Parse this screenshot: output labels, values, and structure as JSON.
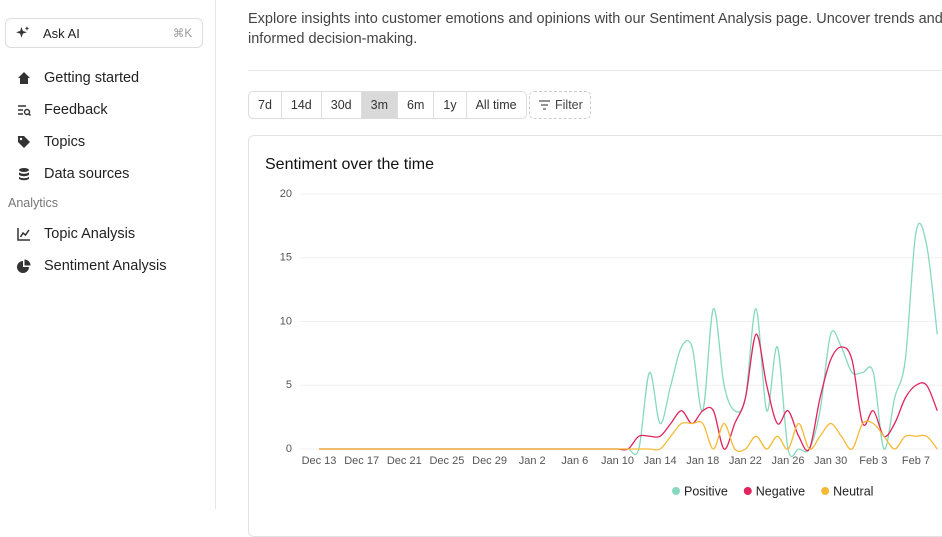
{
  "sidebar": {
    "ask_ai": {
      "label": "Ask AI",
      "shortcut": "⌘K"
    },
    "nav": [
      "Getting started",
      "Feedback",
      "Topics",
      "Data sources"
    ],
    "section": "Analytics",
    "analytics_nav": [
      "Topic Analysis",
      "Sentiment Analysis"
    ]
  },
  "intro": [
    "Explore insights into customer emotions and opinions with our Sentiment Analysis page. Uncover trends and",
    "informed decision-making."
  ],
  "ranges": {
    "options": [
      "7d",
      "14d",
      "30d",
      "3m",
      "6m",
      "1y",
      "All time"
    ],
    "selected": "3m",
    "filter": "Filter"
  },
  "chart_data": {
    "type": "line",
    "title": "Sentiment over the time",
    "categories": [
      "Dec 13",
      null,
      null,
      null,
      "Dec 17",
      null,
      null,
      null,
      "Dec 21",
      null,
      null,
      null,
      "Dec 25",
      null,
      null,
      null,
      "Dec 29",
      null,
      null,
      null,
      "Jan 2",
      null,
      null,
      null,
      "Jan 6",
      null,
      null,
      null,
      "Jan 10",
      null,
      null,
      null,
      "Jan 14",
      null,
      null,
      null,
      "Jan 18",
      null,
      null,
      null,
      "Jan 22",
      null,
      null,
      null,
      "Jan 26",
      null,
      null,
      null,
      "Jan 30",
      null,
      null,
      null,
      "Feb 3",
      null,
      null,
      null,
      "Feb 7",
      null,
      null
    ],
    "series": [
      {
        "name": "Positive",
        "color": "#86d9be",
        "values": [
          0,
          0,
          0,
          0,
          0,
          0,
          0,
          0,
          0,
          0,
          0,
          0,
          0,
          0,
          0,
          0,
          0,
          0,
          0,
          0,
          0,
          0,
          0,
          0,
          0,
          0,
          0,
          0,
          0,
          0,
          0,
          6,
          2,
          5,
          8,
          8,
          3,
          11,
          5,
          3,
          4,
          11,
          3,
          8,
          0,
          0,
          0,
          3,
          9,
          8,
          6,
          6,
          6,
          0,
          4,
          7,
          17,
          16,
          9
        ]
      },
      {
        "name": "Negative",
        "color": "#e0245e",
        "values": [
          0,
          0,
          0,
          0,
          0,
          0,
          0,
          0,
          0,
          0,
          0,
          0,
          0,
          0,
          0,
          0,
          0,
          0,
          0,
          0,
          0,
          0,
          0,
          0,
          0,
          0,
          0,
          0,
          0,
          0,
          1,
          1,
          1,
          2,
          3,
          2,
          3,
          3,
          0,
          2,
          4,
          9,
          5,
          2,
          3,
          1,
          0,
          4,
          7,
          8,
          7,
          2,
          3,
          1,
          2,
          4,
          5,
          5,
          3
        ]
      },
      {
        "name": "Neutral",
        "color": "#f6b935",
        "values": [
          0,
          0,
          0,
          0,
          0,
          0,
          0,
          0,
          0,
          0,
          0,
          0,
          0,
          0,
          0,
          0,
          0,
          0,
          0,
          0,
          0,
          0,
          0,
          0,
          0,
          0,
          0,
          0,
          0,
          0,
          0,
          0,
          0,
          1,
          2,
          2,
          2,
          0,
          2,
          0,
          0,
          1,
          0,
          1,
          0,
          2,
          0,
          1,
          2,
          1,
          0,
          2,
          2,
          1,
          0,
          1,
          1,
          1,
          0
        ]
      }
    ],
    "ylim": [
      0,
      20
    ],
    "yticks": [
      0,
      5,
      10,
      15,
      20
    ],
    "grid": true,
    "legend": "bottom"
  }
}
